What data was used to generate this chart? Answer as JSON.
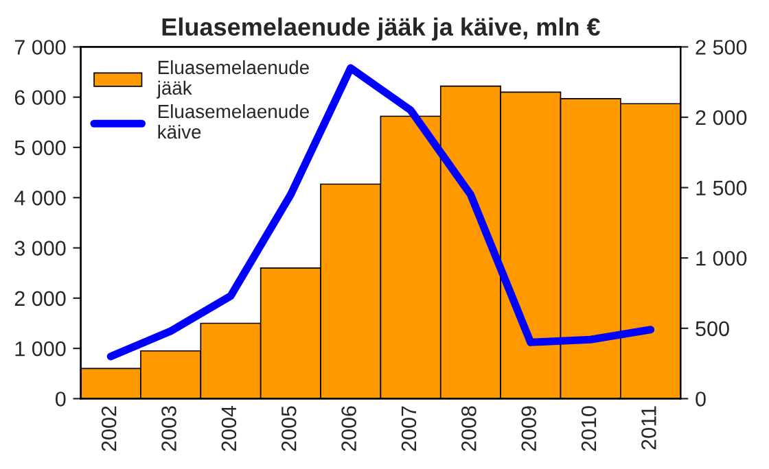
{
  "chart_data": {
    "type": "bar",
    "title": "Eluasemelaenude jääk ja käive, mln €",
    "categories": [
      "2002",
      "2003",
      "2004",
      "2005",
      "2006",
      "2007",
      "2008",
      "2009",
      "2010",
      "2011"
    ],
    "series": [
      {
        "name": "Eluasemelaenude jääk",
        "color": "#ff9900",
        "values": [
          600,
          950,
          1500,
          2600,
          4270,
          5620,
          6220,
          6100,
          5970,
          5870
        ]
      },
      {
        "name": "Eluasemelaenude käive",
        "type": "line",
        "axis": "y2",
        "color": "#0000ff",
        "values": [
          300,
          480,
          730,
          1450,
          2350,
          2050,
          1450,
          400,
          420,
          490
        ]
      }
    ],
    "ylim": [
      0,
      7000
    ],
    "yticks": [
      0,
      {
        "value": 1000,
        "label": "1 000"
      },
      {
        "value": 2000,
        "label": "2 000"
      },
      {
        "value": 3000,
        "label": "3 000"
      },
      {
        "value": 4000,
        "label": "4 000"
      },
      {
        "value": 5000,
        "label": "5 000"
      },
      {
        "value": 6000,
        "label": "6 000"
      },
      {
        "value": 7000,
        "label": "7 000"
      }
    ],
    "y2lim": [
      0,
      2500
    ],
    "y2ticks": [
      0,
      500,
      {
        "value": 1000,
        "label": "1 000"
      },
      {
        "value": 1500,
        "label": "1 500"
      },
      {
        "value": 2000,
        "label": "2 000"
      },
      {
        "value": 2500,
        "label": "2 500"
      }
    ],
    "legend": "top left",
    "grid": false,
    "marker": "none",
    "line_style": "solid"
  }
}
